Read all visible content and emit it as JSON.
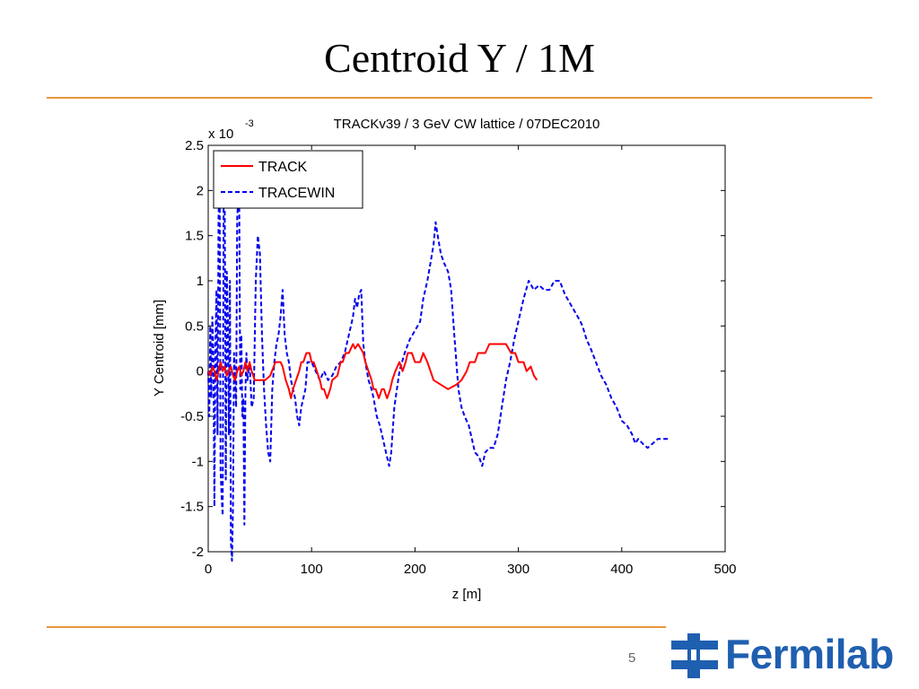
{
  "slide": {
    "title": "Centroid Y / 1M",
    "page_number": "5",
    "logo_text": "Fermilab",
    "accent_color": "#e8963c",
    "logo_color": "#1f5fb0"
  },
  "chart_data": {
    "type": "line",
    "title": "TRACKv39 / 3 GeV CW lattice / 07DEC2010",
    "xlabel": "z [m]",
    "ylabel": "Y Centroid [mm]",
    "y_multiplier": "x 10",
    "y_multiplier_exp": "-3",
    "xlim": [
      0,
      500
    ],
    "ylim": [
      -2,
      2.5
    ],
    "xticks": [
      0,
      100,
      200,
      300,
      400,
      500
    ],
    "yticks": [
      -2,
      -1.5,
      -1,
      -0.5,
      0,
      0.5,
      1,
      1.5,
      2,
      2.5
    ],
    "grid": false,
    "legend_position": "top-left",
    "series": [
      {
        "name": "TRACK",
        "color": "#ff0000",
        "dash": "solid",
        "points": [
          [
            0,
            0
          ],
          [
            2,
            -0.05
          ],
          [
            4,
            0.05
          ],
          [
            6,
            0
          ],
          [
            8,
            -0.1
          ],
          [
            10,
            0
          ],
          [
            12,
            0.1
          ],
          [
            14,
            0
          ],
          [
            16,
            0.05
          ],
          [
            18,
            -0.05
          ],
          [
            20,
            0
          ],
          [
            22,
            0.05
          ],
          [
            24,
            -0.05
          ],
          [
            26,
            -0.1
          ],
          [
            28,
            0
          ],
          [
            30,
            0.05
          ],
          [
            32,
            -0.05
          ],
          [
            34,
            0
          ],
          [
            36,
            0.1
          ],
          [
            38,
            0
          ],
          [
            40,
            0.1
          ],
          [
            42,
            0
          ],
          [
            45,
            -0.1
          ],
          [
            55,
            -0.1
          ],
          [
            60,
            -0.05
          ],
          [
            65,
            0.1
          ],
          [
            70,
            0.1
          ],
          [
            72,
            0.05
          ],
          [
            75,
            -0.1
          ],
          [
            78,
            -0.2
          ],
          [
            80,
            -0.3
          ],
          [
            82,
            -0.2
          ],
          [
            85,
            -0.1
          ],
          [
            88,
            0
          ],
          [
            90,
            0.1
          ],
          [
            92,
            0.1
          ],
          [
            95,
            0.2
          ],
          [
            98,
            0.2
          ],
          [
            100,
            0.1
          ],
          [
            102,
            0.1
          ],
          [
            105,
            0
          ],
          [
            108,
            -0.1
          ],
          [
            110,
            -0.2
          ],
          [
            112,
            -0.2
          ],
          [
            115,
            -0.3
          ],
          [
            118,
            -0.2
          ],
          [
            120,
            -0.1
          ],
          [
            125,
            -0.05
          ],
          [
            128,
            0.1
          ],
          [
            130,
            0.1
          ],
          [
            133,
            0.2
          ],
          [
            136,
            0.2
          ],
          [
            140,
            0.3
          ],
          [
            142,
            0.25
          ],
          [
            145,
            0.3
          ],
          [
            150,
            0.2
          ],
          [
            152,
            0.1
          ],
          [
            155,
            0
          ],
          [
            158,
            -0.1
          ],
          [
            160,
            -0.2
          ],
          [
            162,
            -0.2
          ],
          [
            165,
            -0.3
          ],
          [
            168,
            -0.2
          ],
          [
            170,
            -0.2
          ],
          [
            173,
            -0.3
          ],
          [
            176,
            -0.2
          ],
          [
            178,
            -0.1
          ],
          [
            181,
            0
          ],
          [
            185,
            0.1
          ],
          [
            188,
            0
          ],
          [
            191,
            0.1
          ],
          [
            193,
            0.2
          ],
          [
            197,
            0.2
          ],
          [
            200,
            0.1
          ],
          [
            205,
            0.1
          ],
          [
            208,
            0.2
          ],
          [
            212,
            0.1
          ],
          [
            215,
            0
          ],
          [
            218,
            -0.1
          ],
          [
            225,
            -0.15
          ],
          [
            232,
            -0.2
          ],
          [
            240,
            -0.15
          ],
          [
            245,
            -0.1
          ],
          [
            250,
            0
          ],
          [
            253,
            0.1
          ],
          [
            258,
            0.1
          ],
          [
            261,
            0.2
          ],
          [
            268,
            0.2
          ],
          [
            272,
            0.3
          ],
          [
            288,
            0.3
          ],
          [
            293,
            0.2
          ],
          [
            297,
            0.2
          ],
          [
            300,
            0.1
          ],
          [
            305,
            0.1
          ],
          [
            308,
            0
          ],
          [
            312,
            0.05
          ],
          [
            315,
            -0.05
          ],
          [
            318,
            -0.1
          ]
        ]
      },
      {
        "name": "TRACEWIN",
        "color": "#0000ee",
        "dash": "dashed",
        "points": [
          [
            0,
            0
          ],
          [
            1,
            -0.5
          ],
          [
            2,
            0.5
          ],
          [
            3,
            -0.3
          ],
          [
            4,
            0.6
          ],
          [
            5,
            0.2
          ],
          [
            6,
            -1.5
          ],
          [
            7,
            0.3
          ],
          [
            8,
            0.9
          ],
          [
            9,
            -0.7
          ],
          [
            10,
            1.7
          ],
          [
            11,
            2.1
          ],
          [
            12,
            -1.1
          ],
          [
            13,
            -1.4
          ],
          [
            14,
            -1.6
          ],
          [
            15,
            2.2
          ],
          [
            16,
            1.9
          ],
          [
            17,
            -1.2
          ],
          [
            18,
            1.1
          ],
          [
            19,
            0.6
          ],
          [
            20,
            -0.7
          ],
          [
            21,
            1.0
          ],
          [
            22,
            -1.9
          ],
          [
            23,
            -2.1
          ],
          [
            24,
            -1.5
          ],
          [
            25,
            0.2
          ],
          [
            27,
            -0.4
          ],
          [
            28,
            1.7
          ],
          [
            29,
            1.9
          ],
          [
            30,
            1.8
          ],
          [
            31,
            -0.2
          ],
          [
            32,
            0.4
          ],
          [
            33,
            -0.5
          ],
          [
            34,
            -0.3
          ],
          [
            35,
            -1.7
          ],
          [
            36,
            -0.2
          ],
          [
            37,
            0.2
          ],
          [
            38,
            -0.1
          ],
          [
            40,
            0.1
          ],
          [
            42,
            -0.4
          ],
          [
            44,
            -0.3
          ],
          [
            46,
            1.0
          ],
          [
            48,
            1.5
          ],
          [
            50,
            1.3
          ],
          [
            52,
            0.4
          ],
          [
            54,
            -0.2
          ],
          [
            56,
            -0.6
          ],
          [
            58,
            -0.9
          ],
          [
            60,
            -1.0
          ],
          [
            62,
            -0.2
          ],
          [
            64,
            0.1
          ],
          [
            66,
            0.3
          ],
          [
            68,
            0.4
          ],
          [
            70,
            0.6
          ],
          [
            72,
            0.9
          ],
          [
            74,
            0.4
          ],
          [
            76,
            0.2
          ],
          [
            78,
            0.1
          ],
          [
            80,
            -0.1
          ],
          [
            82,
            -0.2
          ],
          [
            84,
            -0.3
          ],
          [
            86,
            -0.5
          ],
          [
            88,
            -0.6
          ],
          [
            90,
            -0.4
          ],
          [
            92,
            -0.3
          ],
          [
            94,
            -0.2
          ],
          [
            96,
            0.1
          ],
          [
            100,
            0.1
          ],
          [
            104,
            0
          ],
          [
            108,
            -0.1
          ],
          [
            112,
            0
          ],
          [
            116,
            -0.1
          ],
          [
            120,
            -0.05
          ],
          [
            124,
            0.05
          ],
          [
            128,
            0.1
          ],
          [
            132,
            0.2
          ],
          [
            136,
            0.4
          ],
          [
            140,
            0.6
          ],
          [
            142,
            0.8
          ],
          [
            144,
            0.7
          ],
          [
            146,
            0.85
          ],
          [
            148,
            0.9
          ],
          [
            150,
            0.3
          ],
          [
            152,
            0.1
          ],
          [
            155,
            -0.1
          ],
          [
            158,
            -0.2
          ],
          [
            160,
            -0.3
          ],
          [
            163,
            -0.5
          ],
          [
            166,
            -0.6
          ],
          [
            170,
            -0.8
          ],
          [
            172,
            -0.9
          ],
          [
            175,
            -1.05
          ],
          [
            177,
            -0.9
          ],
          [
            180,
            -0.4
          ],
          [
            185,
            0
          ],
          [
            190,
            0.2
          ],
          [
            195,
            0.35
          ],
          [
            200,
            0.45
          ],
          [
            205,
            0.55
          ],
          [
            208,
            0.8
          ],
          [
            212,
            1.0
          ],
          [
            215,
            1.2
          ],
          [
            218,
            1.4
          ],
          [
            220,
            1.65
          ],
          [
            222,
            1.5
          ],
          [
            225,
            1.3
          ],
          [
            228,
            1.2
          ],
          [
            232,
            1.1
          ],
          [
            235,
            0.9
          ],
          [
            238,
            0.4
          ],
          [
            240,
            0.1
          ],
          [
            242,
            -0.2
          ],
          [
            245,
            -0.4
          ],
          [
            248,
            -0.5
          ],
          [
            252,
            -0.6
          ],
          [
            255,
            -0.75
          ],
          [
            258,
            -0.9
          ],
          [
            262,
            -0.95
          ],
          [
            265,
            -1.05
          ],
          [
            268,
            -0.9
          ],
          [
            272,
            -0.85
          ],
          [
            276,
            -0.85
          ],
          [
            280,
            -0.7
          ],
          [
            284,
            -0.4
          ],
          [
            288,
            -0.1
          ],
          [
            292,
            0.1
          ],
          [
            296,
            0.35
          ],
          [
            300,
            0.55
          ],
          [
            305,
            0.8
          ],
          [
            310,
            1.0
          ],
          [
            315,
            0.9
          ],
          [
            320,
            0.95
          ],
          [
            325,
            0.9
          ],
          [
            330,
            0.9
          ],
          [
            335,
            1.0
          ],
          [
            340,
            1.0
          ],
          [
            345,
            0.85
          ],
          [
            350,
            0.75
          ],
          [
            355,
            0.65
          ],
          [
            360,
            0.55
          ],
          [
            362,
            0.5
          ],
          [
            366,
            0.35
          ],
          [
            370,
            0.25
          ],
          [
            375,
            0.1
          ],
          [
            380,
            -0.05
          ],
          [
            385,
            -0.15
          ],
          [
            390,
            -0.3
          ],
          [
            395,
            -0.4
          ],
          [
            400,
            -0.55
          ],
          [
            405,
            -0.6
          ],
          [
            410,
            -0.7
          ],
          [
            413,
            -0.8
          ],
          [
            416,
            -0.75
          ],
          [
            420,
            -0.8
          ],
          [
            425,
            -0.85
          ],
          [
            430,
            -0.8
          ],
          [
            435,
            -0.75
          ],
          [
            440,
            -0.75
          ],
          [
            445,
            -0.75
          ]
        ]
      }
    ]
  }
}
